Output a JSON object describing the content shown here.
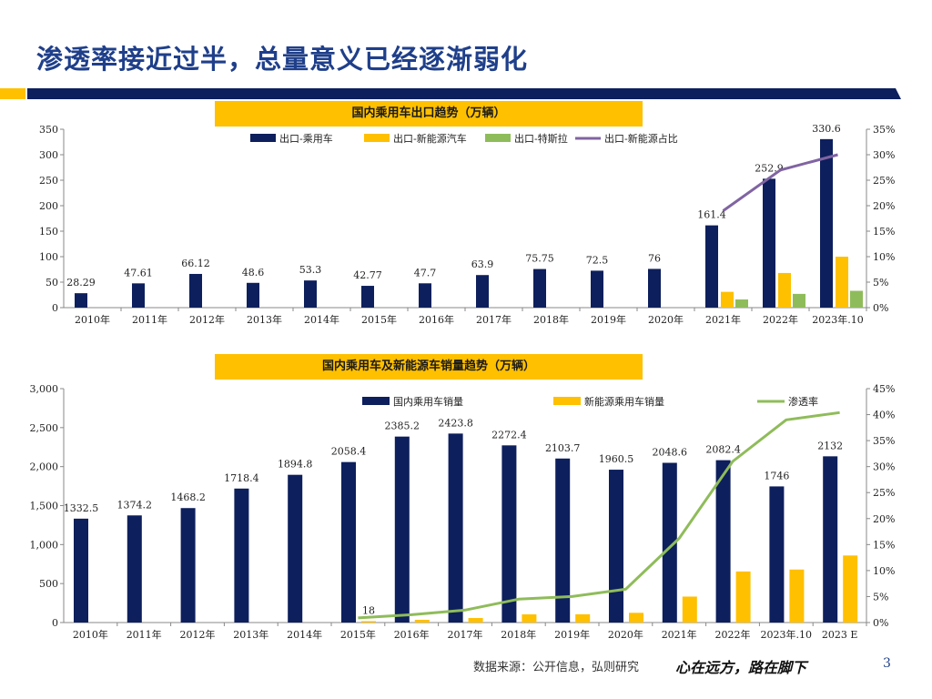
{
  "title": "渗透率接近过半，总量意义已经逐渐弱化",
  "footer": {
    "source": "数据来源：公开信息，弘则研究",
    "slogan": "心在远方，路在脚下",
    "page": "3"
  },
  "colors": {
    "title": "#1f3f8a",
    "navy": "#0d1f5c",
    "yellow": "#ffc000",
    "green": "#8fbc5a",
    "purple": "#8064a2"
  },
  "chart_data": [
    {
      "type": "bar",
      "title": "国内乘用车出口趋势（万辆）",
      "categories": [
        "2010年",
        "2011年",
        "2012年",
        "2013年",
        "2014年",
        "2015年",
        "2016年",
        "2017年",
        "2018年",
        "2019年",
        "2020年",
        "2021年",
        "2022年",
        "2023年.10"
      ],
      "series": [
        {
          "name": "出口-乘用车",
          "kind": "bar",
          "color": "#0d1f5c",
          "values": [
            28.29,
            47.61,
            66.12,
            48.6,
            53.3,
            42.77,
            47.7,
            63.9,
            75.75,
            72.5,
            76,
            161.4,
            252.9,
            330.6
          ],
          "labels": [
            "28.29",
            "47.61",
            "66.12",
            "48.6",
            "53.3",
            "42.77",
            "47.7",
            "63.9",
            "75.75",
            "72.5",
            "76",
            "161.4",
            "252.9",
            "330.6"
          ]
        },
        {
          "name": "出口-新能源汽车",
          "kind": "bar",
          "color": "#ffc000",
          "values": [
            null,
            null,
            null,
            null,
            null,
            null,
            null,
            null,
            null,
            null,
            null,
            31,
            68,
            100
          ]
        },
        {
          "name": "出口-特斯拉",
          "kind": "bar",
          "color": "#8fbc5a",
          "values": [
            null,
            null,
            null,
            null,
            null,
            null,
            null,
            null,
            null,
            null,
            null,
            16,
            27,
            33
          ]
        },
        {
          "name": "出口-新能源占比",
          "kind": "line",
          "axis": "right",
          "color": "#8064a2",
          "values": [
            null,
            null,
            null,
            null,
            null,
            null,
            null,
            null,
            null,
            null,
            null,
            0.19,
            0.27,
            0.3
          ]
        }
      ],
      "y_left": {
        "min": 0,
        "max": 350,
        "ticks": [
          "0",
          "50",
          "100",
          "150",
          "200",
          "250",
          "300",
          "350"
        ]
      },
      "y_right": {
        "min": 0,
        "max": 0.35,
        "ticks": [
          "0%",
          "5%",
          "10%",
          "15%",
          "20%",
          "25%",
          "30%",
          "35%"
        ]
      },
      "legend": "top"
    },
    {
      "type": "bar",
      "title": "国内乘用车及新能源车销量趋势（万辆）",
      "categories": [
        "2010年",
        "2011年",
        "2012年",
        "2013年",
        "2014年",
        "2015年",
        "2016年",
        "2017年",
        "2018年",
        "2019年",
        "2020年",
        "2021年",
        "2022年",
        "2023年.10",
        "2023 E"
      ],
      "series": [
        {
          "name": "国内乘用车销量",
          "kind": "bar",
          "color": "#0d1f5c",
          "values": [
            1332.5,
            1374.2,
            1468.2,
            1718.4,
            1894.8,
            2058.4,
            2385.2,
            2423.8,
            2272.4,
            2103.7,
            1960.5,
            2048.6,
            2082.4,
            1746,
            2132
          ],
          "labels": [
            "1332.5",
            "1374.2",
            "1468.2",
            "1718.4",
            "1894.8",
            "2058.4",
            "2385.2",
            "2423.8",
            "2272.4",
            "2103.7",
            "1960.5",
            "2048.6",
            "2082.4",
            "1746",
            "2132"
          ]
        },
        {
          "name": "新能源乘用车销量",
          "kind": "bar",
          "color": "#ffc000",
          "values": [
            null,
            null,
            null,
            null,
            null,
            18,
            35,
            58,
            105,
            106,
            125,
            333,
            655,
            680,
            860
          ],
          "labels": [
            "",
            "",
            "",
            "",
            "",
            "18",
            "",
            "",
            "",
            "",
            "",
            "",
            "",
            "",
            ""
          ]
        },
        {
          "name": "渗透率",
          "kind": "line",
          "axis": "right",
          "color": "#8fbc5a",
          "values": [
            null,
            null,
            null,
            null,
            null,
            0.009,
            0.015,
            0.024,
            0.045,
            0.05,
            0.064,
            0.162,
            0.31,
            0.39,
            0.404
          ]
        }
      ],
      "y_left": {
        "min": 0,
        "max": 3000,
        "ticks": [
          "0",
          "500",
          "1,000",
          "1,500",
          "2,000",
          "2,500",
          "3,000"
        ]
      },
      "y_right": {
        "min": 0,
        "max": 0.45,
        "ticks": [
          "0%",
          "5%",
          "10%",
          "15%",
          "20%",
          "25%",
          "30%",
          "35%",
          "40%",
          "45%"
        ]
      },
      "legend": "top"
    }
  ]
}
